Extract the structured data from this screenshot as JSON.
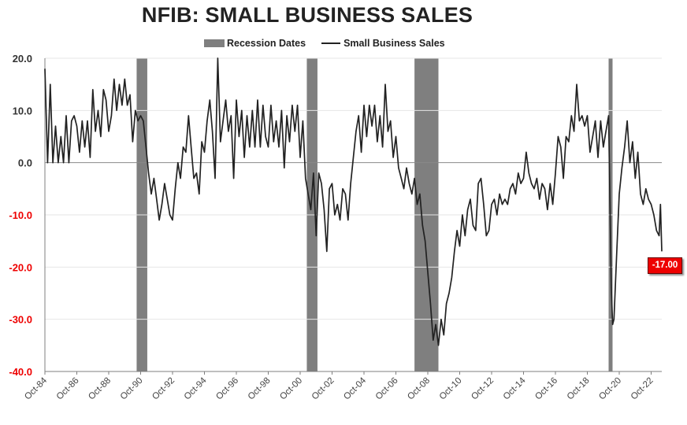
{
  "chart_data": {
    "type": "line",
    "title": "NFIB: SMALL BUSINESS SALES",
    "ylim": [
      -40,
      20
    ],
    "yticks": [
      "20.0",
      "10.0",
      "0.0",
      "-10.0",
      "-20.0",
      "-30.0",
      "-40.0"
    ],
    "xticks": [
      "Oct-84",
      "Oct-86",
      "Oct-88",
      "Oct-90",
      "Oct-92",
      "Oct-94",
      "Oct-96",
      "Oct-98",
      "Oct-00",
      "Oct-02",
      "Oct-04",
      "Oct-06",
      "Oct-08",
      "Oct-10",
      "Oct-12",
      "Oct-14",
      "Oct-16",
      "Oct-18",
      "Oct-20",
      "Oct-22"
    ],
    "x_start": "1984-10",
    "x_end": "2023-06",
    "legend": [
      "Recession Dates",
      "Small Business Sales"
    ],
    "legend_position": "top-center",
    "grid": true,
    "recessions": [
      [
        "1990-07",
        "1991-03"
      ],
      [
        "2001-03",
        "2001-11"
      ],
      [
        "2007-12",
        "2009-06"
      ],
      [
        "2020-02",
        "2020-04"
      ]
    ],
    "series": [
      {
        "name": "Small Business Sales",
        "points": [
          [
            "1984-10",
            18
          ],
          [
            "1984-12",
            0
          ],
          [
            "1985-02",
            15
          ],
          [
            "1985-04",
            0
          ],
          [
            "1985-06",
            7
          ],
          [
            "1985-08",
            0
          ],
          [
            "1985-10",
            5
          ],
          [
            "1985-12",
            0
          ],
          [
            "1986-02",
            9
          ],
          [
            "1986-04",
            0
          ],
          [
            "1986-06",
            8
          ],
          [
            "1986-08",
            9
          ],
          [
            "1986-10",
            7
          ],
          [
            "1986-12",
            2
          ],
          [
            "1987-02",
            8
          ],
          [
            "1987-04",
            3
          ],
          [
            "1987-06",
            8
          ],
          [
            "1987-08",
            1
          ],
          [
            "1987-10",
            14
          ],
          [
            "1987-12",
            6
          ],
          [
            "1988-02",
            10
          ],
          [
            "1988-04",
            5
          ],
          [
            "1988-06",
            14
          ],
          [
            "1988-08",
            12
          ],
          [
            "1988-10",
            6
          ],
          [
            "1988-12",
            9
          ],
          [
            "1989-02",
            16
          ],
          [
            "1989-04",
            10
          ],
          [
            "1989-06",
            15
          ],
          [
            "1989-08",
            11
          ],
          [
            "1989-10",
            16
          ],
          [
            "1989-12",
            11
          ],
          [
            "1990-02",
            13
          ],
          [
            "1990-04",
            4
          ],
          [
            "1990-06",
            10
          ],
          [
            "1990-08",
            8
          ],
          [
            "1990-10",
            9
          ],
          [
            "1990-12",
            8
          ],
          [
            "1991-02",
            3
          ],
          [
            "1991-04",
            -2
          ],
          [
            "1991-06",
            -6
          ],
          [
            "1991-08",
            -3
          ],
          [
            "1991-10",
            -7
          ],
          [
            "1991-12",
            -11
          ],
          [
            "1992-02",
            -8
          ],
          [
            "1992-04",
            -4
          ],
          [
            "1992-06",
            -7
          ],
          [
            "1992-08",
            -10
          ],
          [
            "1992-10",
            -11
          ],
          [
            "1992-12",
            -5
          ],
          [
            "1993-02",
            0
          ],
          [
            "1993-04",
            -3
          ],
          [
            "1993-06",
            3
          ],
          [
            "1993-08",
            2
          ],
          [
            "1993-10",
            9
          ],
          [
            "1993-12",
            3
          ],
          [
            "1994-02",
            -3
          ],
          [
            "1994-04",
            -2
          ],
          [
            "1994-06",
            -6
          ],
          [
            "1994-08",
            4
          ],
          [
            "1994-10",
            2
          ],
          [
            "1994-12",
            8
          ],
          [
            "1995-02",
            12
          ],
          [
            "1995-04",
            6
          ],
          [
            "1995-06",
            -3
          ],
          [
            "1995-08",
            20
          ],
          [
            "1995-10",
            4
          ],
          [
            "1995-12",
            8
          ],
          [
            "1996-02",
            12
          ],
          [
            "1996-04",
            6
          ],
          [
            "1996-06",
            9
          ],
          [
            "1996-08",
            -3
          ],
          [
            "1996-10",
            12
          ],
          [
            "1996-12",
            5
          ],
          [
            "1997-02",
            10
          ],
          [
            "1997-04",
            1
          ],
          [
            "1997-06",
            9
          ],
          [
            "1997-08",
            3
          ],
          [
            "1997-10",
            10
          ],
          [
            "1997-12",
            3
          ],
          [
            "1998-02",
            12
          ],
          [
            "1998-04",
            3
          ],
          [
            "1998-06",
            11
          ],
          [
            "1998-08",
            5
          ],
          [
            "1998-10",
            3
          ],
          [
            "1998-12",
            11
          ],
          [
            "1999-02",
            4
          ],
          [
            "1999-04",
            8
          ],
          [
            "1999-06",
            3
          ],
          [
            "1999-08",
            10
          ],
          [
            "1999-10",
            -1
          ],
          [
            "1999-12",
            9
          ],
          [
            "2000-02",
            4
          ],
          [
            "2000-04",
            11
          ],
          [
            "2000-06",
            6
          ],
          [
            "2000-08",
            11
          ],
          [
            "2000-10",
            1
          ],
          [
            "2000-12",
            8
          ],
          [
            "2001-02",
            -3
          ],
          [
            "2001-04",
            -6
          ],
          [
            "2001-06",
            -9
          ],
          [
            "2001-08",
            -2
          ],
          [
            "2001-10",
            -14
          ],
          [
            "2001-12",
            -2
          ],
          [
            "2002-02",
            -4
          ],
          [
            "2002-04",
            -9
          ],
          [
            "2002-06",
            -17
          ],
          [
            "2002-08",
            -5
          ],
          [
            "2002-10",
            -4
          ],
          [
            "2002-12",
            -10
          ],
          [
            "2003-02",
            -8
          ],
          [
            "2003-04",
            -11
          ],
          [
            "2003-06",
            -5
          ],
          [
            "2003-08",
            -6
          ],
          [
            "2003-10",
            -11
          ],
          [
            "2003-12",
            -4
          ],
          [
            "2004-02",
            1
          ],
          [
            "2004-04",
            6
          ],
          [
            "2004-06",
            9
          ],
          [
            "2004-08",
            2
          ],
          [
            "2004-10",
            11
          ],
          [
            "2004-12",
            5
          ],
          [
            "2005-02",
            11
          ],
          [
            "2005-04",
            7
          ],
          [
            "2005-06",
            11
          ],
          [
            "2005-08",
            4
          ],
          [
            "2005-10",
            9
          ],
          [
            "2005-12",
            3
          ],
          [
            "2006-02",
            15
          ],
          [
            "2006-04",
            6
          ],
          [
            "2006-06",
            8
          ],
          [
            "2006-08",
            1
          ],
          [
            "2006-10",
            5
          ],
          [
            "2006-12",
            -1
          ],
          [
            "2007-02",
            -3
          ],
          [
            "2007-04",
            -5
          ],
          [
            "2007-06",
            -1
          ],
          [
            "2007-08",
            -4
          ],
          [
            "2007-10",
            -6
          ],
          [
            "2007-12",
            -3
          ],
          [
            "2008-02",
            -8
          ],
          [
            "2008-04",
            -6
          ],
          [
            "2008-06",
            -12
          ],
          [
            "2008-08",
            -15
          ],
          [
            "2008-10",
            -21
          ],
          [
            "2008-12",
            -27
          ],
          [
            "2009-02",
            -34
          ],
          [
            "2009-04",
            -31
          ],
          [
            "2009-06",
            -35
          ],
          [
            "2009-08",
            -30
          ],
          [
            "2009-10",
            -33
          ],
          [
            "2009-12",
            -27
          ],
          [
            "2010-02",
            -25
          ],
          [
            "2010-04",
            -22
          ],
          [
            "2010-06",
            -17
          ],
          [
            "2010-08",
            -13
          ],
          [
            "2010-10",
            -16
          ],
          [
            "2010-12",
            -10
          ],
          [
            "2011-02",
            -14
          ],
          [
            "2011-04",
            -9
          ],
          [
            "2011-06",
            -7
          ],
          [
            "2011-08",
            -12
          ],
          [
            "2011-10",
            -13
          ],
          [
            "2011-12",
            -4
          ],
          [
            "2012-02",
            -3
          ],
          [
            "2012-04",
            -8
          ],
          [
            "2012-06",
            -14
          ],
          [
            "2012-08",
            -13
          ],
          [
            "2012-10",
            -8
          ],
          [
            "2012-12",
            -7
          ],
          [
            "2013-02",
            -10
          ],
          [
            "2013-04",
            -6
          ],
          [
            "2013-06",
            -8
          ],
          [
            "2013-08",
            -7
          ],
          [
            "2013-10",
            -8
          ],
          [
            "2013-12",
            -5
          ],
          [
            "2014-02",
            -4
          ],
          [
            "2014-04",
            -6
          ],
          [
            "2014-06",
            -2
          ],
          [
            "2014-08",
            -4
          ],
          [
            "2014-10",
            -3
          ],
          [
            "2014-12",
            2
          ],
          [
            "2015-02",
            -2
          ],
          [
            "2015-04",
            -4
          ],
          [
            "2015-06",
            -5
          ],
          [
            "2015-08",
            -3
          ],
          [
            "2015-10",
            -7
          ],
          [
            "2015-12",
            -4
          ],
          [
            "2016-02",
            -5
          ],
          [
            "2016-04",
            -9
          ],
          [
            "2016-06",
            -4
          ],
          [
            "2016-08",
            -8
          ],
          [
            "2016-10",
            -2
          ],
          [
            "2016-12",
            5
          ],
          [
            "2017-02",
            3
          ],
          [
            "2017-04",
            -3
          ],
          [
            "2017-06",
            5
          ],
          [
            "2017-08",
            4
          ],
          [
            "2017-10",
            9
          ],
          [
            "2017-12",
            6
          ],
          [
            "2018-02",
            15
          ],
          [
            "2018-04",
            8
          ],
          [
            "2018-06",
            9
          ],
          [
            "2018-08",
            7
          ],
          [
            "2018-10",
            9
          ],
          [
            "2018-12",
            2
          ],
          [
            "2019-02",
            5
          ],
          [
            "2019-04",
            8
          ],
          [
            "2019-06",
            1
          ],
          [
            "2019-08",
            8
          ],
          [
            "2019-10",
            3
          ],
          [
            "2019-12",
            6
          ],
          [
            "2020-02",
            9
          ],
          [
            "2020-04",
            -24
          ],
          [
            "2020-05",
            -31
          ],
          [
            "2020-06",
            -30
          ],
          [
            "2020-08",
            -18
          ],
          [
            "2020-10",
            -6
          ],
          [
            "2020-12",
            -1
          ],
          [
            "2021-02",
            3
          ],
          [
            "2021-04",
            8
          ],
          [
            "2021-06",
            0
          ],
          [
            "2021-08",
            4
          ],
          [
            "2021-10",
            -3
          ],
          [
            "2021-12",
            2
          ],
          [
            "2022-02",
            -6
          ],
          [
            "2022-04",
            -8
          ],
          [
            "2022-06",
            -5
          ],
          [
            "2022-08",
            -7
          ],
          [
            "2022-10",
            -8
          ],
          [
            "2022-12",
            -10
          ],
          [
            "2023-02",
            -13
          ],
          [
            "2023-04",
            -14
          ],
          [
            "2023-05",
            -8
          ],
          [
            "2023-06",
            -17
          ]
        ]
      }
    ],
    "last_value_label": "-17.00",
    "colors": {
      "recession": "#7f7f7f",
      "line": "#222222",
      "positive_tick": "#333333",
      "negative_tick": "#ee0000",
      "badge": "#ee0000"
    }
  }
}
